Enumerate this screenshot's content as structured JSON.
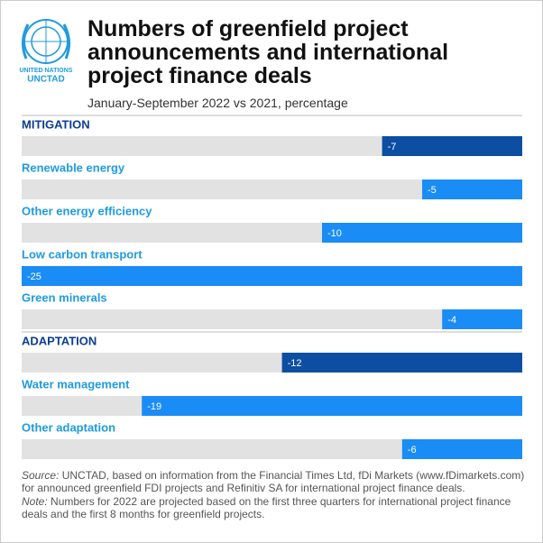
{
  "logo": {
    "line1": "UNITED NATIONS",
    "line2": "UNCTAD"
  },
  "chart_data": {
    "type": "bar",
    "orientation": "horizontal",
    "title": "Numbers of greenfield project announcements and international project finance deals",
    "subtitle": "January-September 2022 vs 2021, percentage",
    "categories": [
      "MITIGATION",
      "Renewable energy",
      "Other energy efficiency",
      "Low carbon transport",
      "Green minerals",
      "ADAPTATION",
      "Water management",
      "Other adaptation"
    ],
    "values": [
      -7,
      -5,
      -10,
      -25,
      -4,
      -12,
      -19,
      -6
    ],
    "colors": [
      "#0b4ea2",
      "#1a8cf5",
      "#1a8cf5",
      "#1a8cf5",
      "#1a8cf5",
      "#0b4ea2",
      "#1a8cf5",
      "#1a8cf5"
    ],
    "label_colors": [
      "#0b3d91",
      "#1f9be0",
      "#1f9be0",
      "#1f9be0",
      "#1f9be0",
      "#0b3d91",
      "#1f9be0",
      "#1f9be0"
    ],
    "track_color": "#e2e2e2",
    "xlim": [
      -25,
      0
    ]
  },
  "footer": {
    "source_label": "Source:",
    "source": "UNCTAD, based on information from the Financial Times Ltd, fDi Markets (www.fDimarkets.com) for announced greenfield FDI projects and Refinitiv SA for international project finance deals.",
    "note_label": "Note:",
    "note": "Numbers for 2022 are projected based on the first three quarters for international project finance deals and the first 8 months for greenfield projects."
  }
}
